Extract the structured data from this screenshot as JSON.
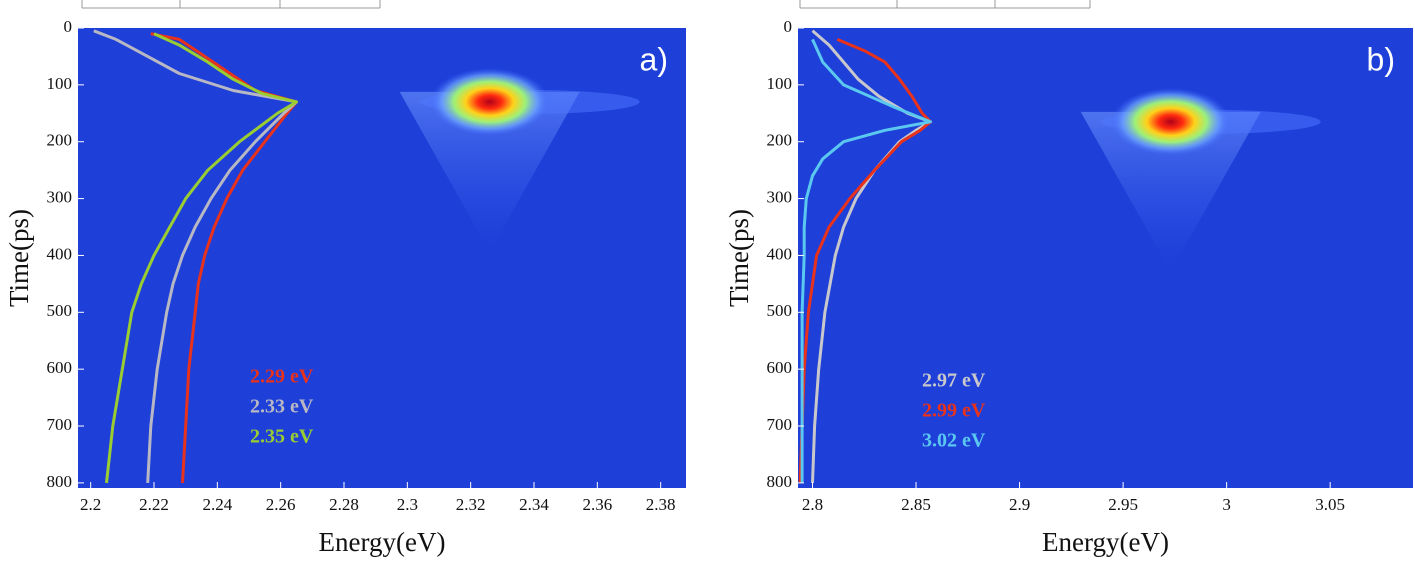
{
  "chart_data": [
    {
      "type": "line",
      "panel_label": "a)",
      "x_label": "Energy(eV)",
      "y_label": "Time(ps)",
      "background": "#1e3fd8",
      "y_inverted": true,
      "xlim": [
        2.196,
        2.388
      ],
      "xticks": [
        2.2,
        2.22,
        2.24,
        2.26,
        2.28,
        2.3,
        2.32,
        2.34,
        2.36,
        2.38
      ],
      "ylim": [
        0,
        809
      ],
      "yticks": [
        0,
        100,
        200,
        300,
        400,
        500,
        600,
        700,
        800
      ],
      "emission_peak": {
        "energy": 2.326,
        "time": 130
      },
      "series": [
        {
          "name": "2.29 eV",
          "color": "#e8321c",
          "x": [
            2.219,
            2.228,
            2.236,
            2.244,
            2.252,
            2.265,
            2.262,
            2.255,
            2.248,
            2.243,
            2.239,
            2.236,
            2.234,
            2.233,
            2.231,
            2.23,
            2.229
          ],
          "y": [
            10,
            20,
            50,
            80,
            110,
            130,
            150,
            200,
            250,
            300,
            350,
            400,
            450,
            500,
            600,
            700,
            800
          ]
        },
        {
          "name": "2.33 eV",
          "color": "#b8b8c4",
          "x": [
            2.201,
            2.208,
            2.218,
            2.228,
            2.245,
            2.265,
            2.261,
            2.252,
            2.244,
            2.238,
            2.233,
            2.229,
            2.226,
            2.224,
            2.221,
            2.219,
            2.218
          ],
          "y": [
            5,
            20,
            50,
            80,
            110,
            130,
            150,
            200,
            250,
            300,
            350,
            400,
            450,
            500,
            600,
            700,
            800
          ]
        },
        {
          "name": "2.35 eV",
          "color": "#9acd32",
          "x": [
            2.22,
            2.228,
            2.237,
            2.245,
            2.254,
            2.265,
            2.259,
            2.247,
            2.237,
            2.23,
            2.225,
            2.22,
            2.216,
            2.213,
            2.21,
            2.207,
            2.205
          ],
          "y": [
            10,
            30,
            60,
            90,
            115,
            130,
            150,
            200,
            250,
            300,
            350,
            400,
            450,
            500,
            600,
            700,
            800
          ]
        }
      ]
    },
    {
      "type": "line",
      "panel_label": "b)",
      "x_label": "Energy(eV)",
      "y_label": "Time(ps)",
      "background": "#1e3fd8",
      "y_inverted": true,
      "xlim": [
        2.793,
        3.09
      ],
      "xticks": [
        2.8,
        2.85,
        2.9,
        2.95,
        3,
        3.05
      ],
      "ylim": [
        0,
        809
      ],
      "yticks": [
        0,
        100,
        200,
        300,
        400,
        500,
        600,
        700,
        800
      ],
      "emission_peak": {
        "energy": 2.973,
        "time": 165
      },
      "series": [
        {
          "name": "2.97 eV",
          "color": "#c8c8cc",
          "x": [
            2.8,
            2.808,
            2.815,
            2.822,
            2.832,
            2.846,
            2.857,
            2.85,
            2.842,
            2.83,
            2.821,
            2.815,
            2.811,
            2.806,
            2.803,
            2.801,
            2.8
          ],
          "y": [
            5,
            30,
            60,
            90,
            120,
            150,
            165,
            180,
            200,
            250,
            300,
            350,
            400,
            500,
            600,
            700,
            800
          ]
        },
        {
          "name": "2.99 eV",
          "color": "#e8321c",
          "x": [
            2.812,
            2.825,
            2.835,
            2.842,
            2.848,
            2.853,
            2.857,
            2.852,
            2.843,
            2.83,
            2.818,
            2.808,
            2.802,
            2.798,
            2.796,
            2.795,
            2.794
          ],
          "y": [
            20,
            40,
            60,
            90,
            120,
            150,
            165,
            180,
            200,
            250,
            300,
            350,
            400,
            500,
            600,
            700,
            800
          ]
        },
        {
          "name": "3.02 eV",
          "color": "#5bc8f0",
          "x": [
            2.8,
            2.805,
            2.815,
            2.84,
            2.857,
            2.835,
            2.815,
            2.805,
            2.8,
            2.797,
            2.796,
            2.796,
            2.795,
            2.795,
            2.795,
            2.795
          ],
          "y": [
            20,
            60,
            100,
            140,
            165,
            180,
            200,
            230,
            260,
            300,
            350,
            400,
            500,
            600,
            700,
            800
          ]
        }
      ]
    }
  ]
}
